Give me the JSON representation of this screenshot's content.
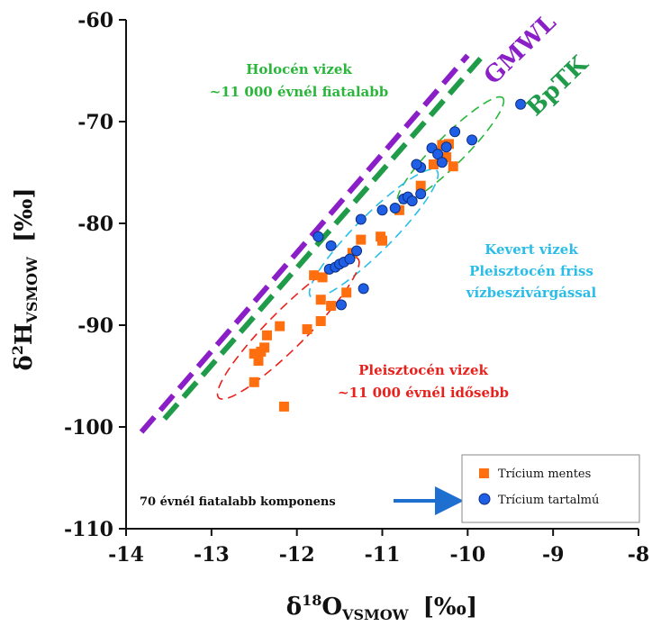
{
  "chart_data": {
    "type": "scatter",
    "xlabel": {
      "main": "δ",
      "sup": "18",
      "mid": "O",
      "sub": "VSMOW",
      "unit": "[‰]"
    },
    "ylabel": {
      "main": "δ",
      "sup": "2",
      "mid": "H",
      "sub": "VSMOW",
      "unit": "[‰]"
    },
    "xlim": [
      -14,
      -8
    ],
    "ylim": [
      -110,
      -60
    ],
    "xticks": [
      -14,
      -13,
      -12,
      -11,
      -10,
      -9,
      -8
    ],
    "yticks": [
      -110,
      -100,
      -90,
      -80,
      -70,
      -60
    ],
    "grid": false,
    "legend_position": "bottom-right",
    "lines": [
      {
        "name": "GMWL",
        "color": "#8b1fc7",
        "x": [
          -13.82,
          -10.0
        ],
        "y": [
          -100.5,
          -63.5
        ]
      },
      {
        "name": "BpTK",
        "color": "#1f9b4a",
        "x": [
          -13.55,
          -9.85
        ],
        "y": [
          -99.2,
          -63.8
        ]
      }
    ],
    "series": [
      {
        "name": "Trícium mentes",
        "color": "#ff6f0f",
        "marker": "square",
        "points": [
          [
            -12.5,
            -95.6
          ],
          [
            -12.45,
            -93.5
          ],
          [
            -12.5,
            -92.8
          ],
          [
            -12.42,
            -92.6
          ],
          [
            -12.38,
            -92.2
          ],
          [
            -12.35,
            -91.0
          ],
          [
            -12.2,
            -90.1
          ],
          [
            -12.15,
            -98.0
          ],
          [
            -11.88,
            -90.4
          ],
          [
            -11.8,
            -85.1
          ],
          [
            -11.7,
            -85.3
          ],
          [
            -11.72,
            -87.5
          ],
          [
            -11.72,
            -89.6
          ],
          [
            -11.6,
            -88.1
          ],
          [
            -11.42,
            -86.8
          ],
          [
            -11.35,
            -82.9
          ],
          [
            -11.25,
            -81.6
          ],
          [
            -11.02,
            -81.3
          ],
          [
            -11.0,
            -81.7
          ],
          [
            -10.8,
            -78.7
          ],
          [
            -10.55,
            -76.3
          ],
          [
            -10.4,
            -74.2
          ],
          [
            -10.3,
            -72.3
          ],
          [
            -10.22,
            -72.2
          ],
          [
            -10.25,
            -73.5
          ],
          [
            -10.17,
            -74.4
          ]
        ]
      },
      {
        "name": "Trícium tartalmú",
        "color": "#1f5fe6",
        "marker": "circle",
        "points": [
          [
            -11.75,
            -81.3
          ],
          [
            -11.6,
            -82.2
          ],
          [
            -11.62,
            -84.5
          ],
          [
            -11.55,
            -84.3
          ],
          [
            -11.5,
            -84.0
          ],
          [
            -11.45,
            -83.8
          ],
          [
            -11.38,
            -83.5
          ],
          [
            -11.3,
            -82.7
          ],
          [
            -11.48,
            -88.0
          ],
          [
            -11.22,
            -86.4
          ],
          [
            -11.25,
            -79.6
          ],
          [
            -11.0,
            -78.7
          ],
          [
            -10.85,
            -78.5
          ],
          [
            -10.75,
            -77.6
          ],
          [
            -10.7,
            -77.4
          ],
          [
            -10.65,
            -77.8
          ],
          [
            -10.55,
            -77.1
          ],
          [
            -10.55,
            -74.5
          ],
          [
            -10.6,
            -74.2
          ],
          [
            -10.42,
            -72.6
          ],
          [
            -10.35,
            -73.2
          ],
          [
            -10.3,
            -74.0
          ],
          [
            -10.25,
            -72.5
          ],
          [
            -10.15,
            -71.0
          ],
          [
            -9.95,
            -71.8
          ],
          [
            -9.38,
            -68.3
          ]
        ]
      }
    ],
    "ellipses": [
      {
        "color": "#29b63a",
        "cx": -10.2,
        "cy": -72.8,
        "rx": 1.2,
        "ry": 2.3,
        "angle": -45
      },
      {
        "color": "#29bde8",
        "cx": -11.1,
        "cy": -81.0,
        "rx": 1.45,
        "ry": 2.9,
        "angle": -45
      },
      {
        "color": "#e8211c",
        "cx": -12.1,
        "cy": -90.3,
        "rx": 1.6,
        "ry": 3.0,
        "angle": -45
      }
    ],
    "annotations": {
      "gmwl_label": "GMWL",
      "bptk_label": "BpTK",
      "holocene_line1": "Holocén vizek",
      "holocene_line2": "~11 000 évnél fiatalabb",
      "mixed_line1": "Kevert vizek",
      "mixed_line2": "Pleisztocén friss",
      "mixed_line3": "vízbeszivárgással",
      "pleistocene_line1": "Pleisztocén vizek",
      "pleistocene_line2": "~11 000 évnél idősebb",
      "young_component": "70 évnél fiatalabb komponens"
    },
    "colors": {
      "holocene": "#29b63a",
      "mixed": "#29bde8",
      "pleistocene": "#e8211c",
      "arrow": "#1f6fd0"
    }
  }
}
